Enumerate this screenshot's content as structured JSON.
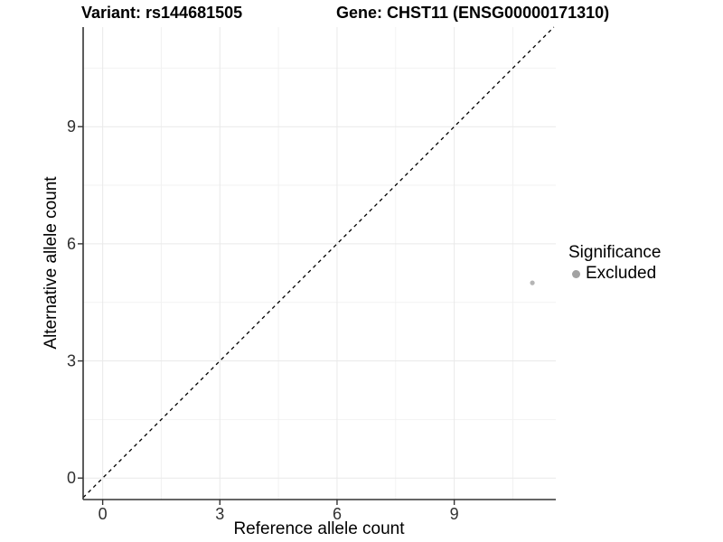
{
  "chart_data": {
    "type": "scatter",
    "title_parts": [
      "Variant: rs144681505",
      "Gene: CHST11 (ENSG00000171310)"
    ],
    "xlabel": "Reference allele count",
    "ylabel": "Alternative allele count",
    "xlim": [
      -0.5,
      11.6
    ],
    "ylim": [
      -0.55,
      11.55
    ],
    "xticks": [
      0,
      3,
      6,
      9
    ],
    "yticks": [
      0,
      3,
      6,
      9
    ],
    "xticks_minor": [
      1.5,
      4.5,
      7.5,
      10.5
    ],
    "yticks_minor": [
      1.5,
      4.5,
      7.5,
      10.5
    ],
    "grid": "major and minor, light grey on white",
    "identity_line": {
      "y_equals_x": true,
      "style": "dashed",
      "color": "#000000",
      "from": -0.5,
      "to": 11.55
    },
    "series": [
      {
        "name": "Excluded",
        "marker": "circle",
        "color": "#b5b5b5",
        "points": [
          {
            "x": 11,
            "y": 5
          }
        ]
      }
    ],
    "legend": {
      "title": "Significance",
      "position": "right",
      "entries": [
        {
          "label": "Excluded",
          "color": "#a2a2a2"
        }
      ]
    },
    "colors": {
      "axis": "#333333",
      "grid_major": "#e9e9e9",
      "grid_minor": "#f2f2f2",
      "tick_text": "#303030"
    }
  }
}
